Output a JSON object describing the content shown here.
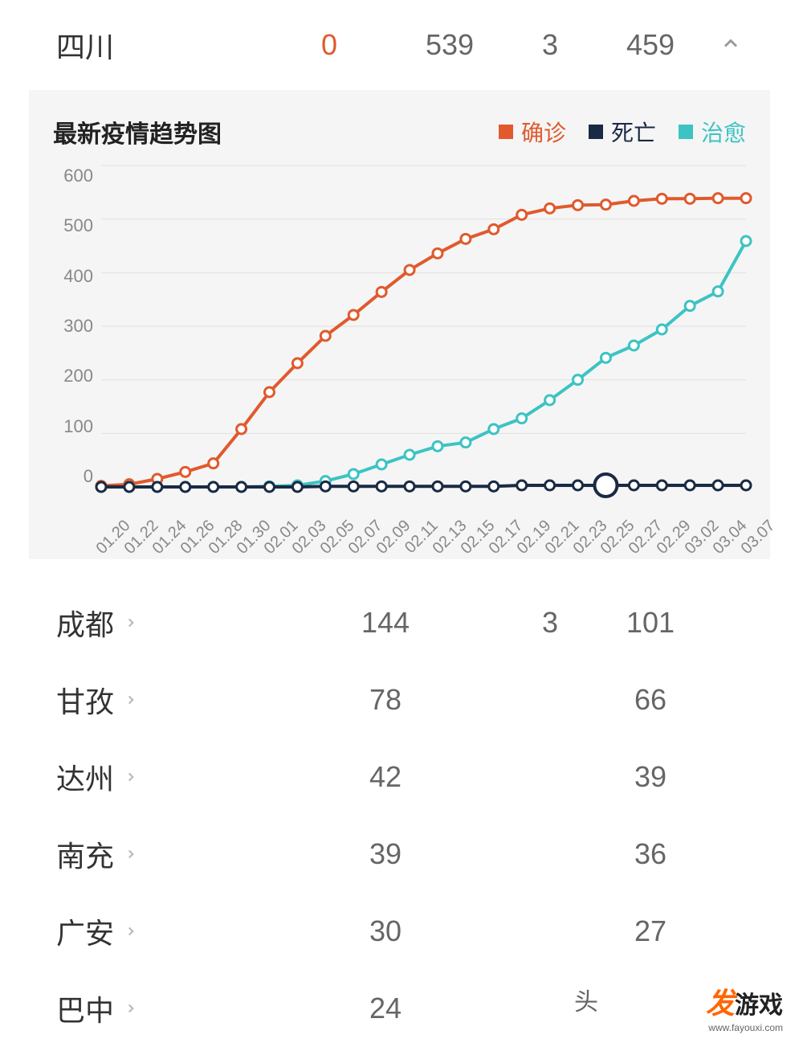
{
  "header": {
    "province": "四川",
    "new_today": "0",
    "new_color": "#e05a2d",
    "confirmed": "539",
    "deaths": "3",
    "cured": "459"
  },
  "chart": {
    "type": "line",
    "title": "最新疫情趋势图",
    "title_fontsize": 30,
    "background_color": "#f5f5f5",
    "grid_color": "#e0e0e0",
    "axis_label_color": "#888888",
    "ylim": [
      0,
      600
    ],
    "ytick_step": 100,
    "yticks": [
      "0",
      "100",
      "200",
      "300",
      "400",
      "500",
      "600"
    ],
    "x_labels": [
      "01.20",
      "01.22",
      "01.24",
      "01.26",
      "01.28",
      "01.30",
      "02.01",
      "02.03",
      "02.05",
      "02.07",
      "02.09",
      "02.11",
      "02.13",
      "02.15",
      "02.17",
      "02.19",
      "02.21",
      "02.23",
      "02.25",
      "02.27",
      "02.29",
      "03.02",
      "03.04",
      "03.07"
    ],
    "legend": [
      {
        "label": "确诊",
        "color": "#e05a2d"
      },
      {
        "label": "死亡",
        "color": "#1a2a44"
      },
      {
        "label": "治愈",
        "color": "#3dc3c3"
      }
    ],
    "series": [
      {
        "name": "confirmed",
        "color": "#e05a2d",
        "line_width": 4,
        "marker": "circle-open",
        "marker_size": 6,
        "values": [
          2,
          5,
          15,
          28,
          44,
          108,
          177,
          231,
          282,
          321,
          364,
          405,
          436,
          463,
          481,
          508,
          520,
          526,
          527,
          534,
          538,
          538,
          539,
          539
        ]
      },
      {
        "name": "cured",
        "color": "#3dc3c3",
        "line_width": 4,
        "marker": "circle-open",
        "marker_size": 6,
        "values": [
          0,
          0,
          0,
          0,
          0,
          0,
          1,
          3,
          11,
          24,
          42,
          60,
          76,
          83,
          108,
          128,
          162,
          200,
          241,
          264,
          294,
          338,
          365,
          459
        ]
      },
      {
        "name": "deaths",
        "color": "#1a2a44",
        "line_width": 4,
        "marker": "circle-open",
        "marker_size": 6,
        "values": [
          0,
          0,
          0,
          0,
          0,
          0,
          0,
          0,
          1,
          1,
          1,
          1,
          1,
          1,
          1,
          3,
          3,
          3,
          3,
          3,
          3,
          3,
          3,
          3
        ],
        "highlight_index": 18,
        "highlight_marker_size": 14
      }
    ]
  },
  "cities": [
    {
      "name": "成都",
      "confirmed": "144",
      "deaths": "3",
      "cured": "101"
    },
    {
      "name": "甘孜",
      "confirmed": "78",
      "deaths": "",
      "cured": "66"
    },
    {
      "name": "达州",
      "confirmed": "42",
      "deaths": "",
      "cured": "39"
    },
    {
      "name": "南充",
      "confirmed": "39",
      "deaths": "",
      "cured": "36"
    },
    {
      "name": "广安",
      "confirmed": "30",
      "deaths": "",
      "cured": "27"
    },
    {
      "name": "巴中",
      "confirmed": "24",
      "deaths": "",
      "cured": ""
    }
  ],
  "watermark_text": "头",
  "logo": {
    "text1": "发",
    "text2": "游戏",
    "url": "www.fayouxi.com",
    "color": "#ff6600"
  }
}
